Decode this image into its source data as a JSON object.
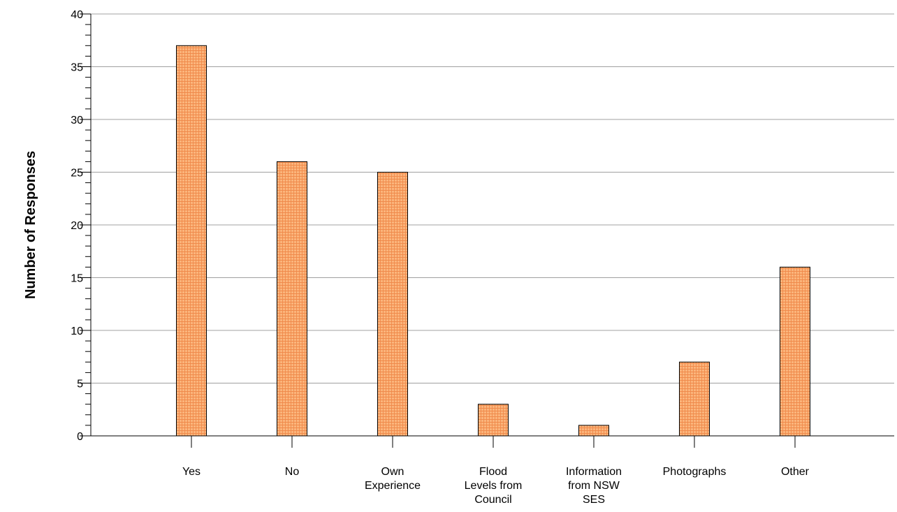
{
  "chart_data": {
    "type": "bar",
    "title": "",
    "xlabel": "",
    "ylabel": "Number of Responses",
    "categories": [
      [
        "Yes"
      ],
      [
        "No"
      ],
      [
        "Own",
        "Experience"
      ],
      [
        "Flood",
        "Levels from",
        "Council"
      ],
      [
        "Information",
        "from NSW",
        "SES"
      ],
      [
        "Photographs"
      ],
      [
        "Other"
      ]
    ],
    "values": [
      37,
      26,
      25,
      3,
      1,
      7,
      16
    ],
    "ylim": [
      0,
      40
    ],
    "yticks": [
      0,
      5,
      10,
      15,
      20,
      25,
      30,
      35,
      40
    ],
    "grid": true,
    "legend": "none",
    "colors": {
      "bar_fill": "#fbb57c",
      "bar_hatch": "#f08a4b",
      "bar_edge": "#000000",
      "grid": "#a0a0a0",
      "axis": "#000000"
    }
  }
}
